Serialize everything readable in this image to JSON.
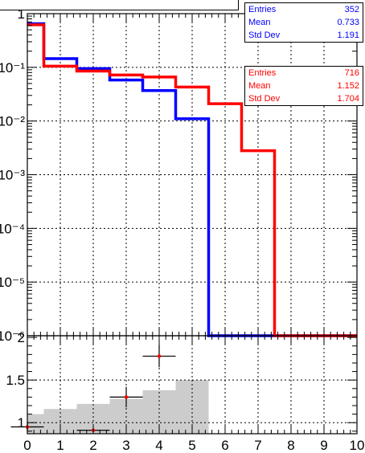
{
  "chart_data": [
    {
      "type": "line",
      "subtype": "step-histogram",
      "xlim": [
        0,
        10
      ],
      "ylim": [
        1e-06,
        1
      ],
      "yscale": "log",
      "grid": true,
      "ytick_labels": [
        "1",
        "10⁻¹",
        "10⁻²",
        "10⁻³",
        "10⁻⁴",
        "10⁻⁵",
        "10⁻⁶"
      ],
      "bin_edges": [
        0,
        0.5,
        1.5,
        2.5,
        3.5,
        4.5,
        5.5,
        6.5,
        7.5,
        10
      ],
      "series": [
        {
          "color": "#0000ff",
          "values": [
            0.65,
            0.145,
            0.095,
            0.058,
            0.037,
            0.011,
            1e-06,
            1e-06,
            1e-06
          ]
        },
        {
          "color": "#ff0000",
          "values": [
            0.62,
            0.105,
            0.085,
            0.072,
            0.066,
            0.043,
            0.021,
            0.0028,
            1e-06
          ]
        }
      ],
      "stats": [
        {
          "color": "#0000ff",
          "labels": [
            "Entries",
            "Mean",
            "Std Dev"
          ],
          "values": [
            "352",
            "0.733",
            "1.191"
          ]
        },
        {
          "color": "#ff0000",
          "labels": [
            "Entries",
            "Mean",
            "Std Dev"
          ],
          "values": [
            "716",
            "1.152",
            "1.704"
          ]
        }
      ]
    },
    {
      "type": "scatter",
      "subtype": "ratio",
      "xlim": [
        0,
        10
      ],
      "ylim": [
        0.87,
        2.02
      ],
      "grid": true,
      "ytick_labels": [
        "1",
        "1.5",
        "2"
      ],
      "xtick_labels": [
        "0",
        "1",
        "2",
        "3",
        "4",
        "5",
        "6",
        "7",
        "8",
        "9",
        "10"
      ],
      "band": {
        "color": "#cccccc",
        "bin_edges": [
          0,
          0.5,
          1.5,
          2.5,
          3.5,
          4.5,
          5.5
        ],
        "upper": [
          1.1,
          1.16,
          1.22,
          1.28,
          1.38,
          1.5
        ]
      },
      "points": [
        {
          "x": 0,
          "y": 0.95,
          "xerr": 0.5,
          "yerr": 0.05
        },
        {
          "x": 2,
          "y": 0.91,
          "xerr": 0.5,
          "yerr": 0.02
        },
        {
          "x": 3,
          "y": 1.3,
          "xerr": 0.5,
          "yerr": 0.12
        },
        {
          "x": 4,
          "y": 1.78,
          "xerr": 0.5,
          "yerr": 0.13
        }
      ]
    }
  ]
}
